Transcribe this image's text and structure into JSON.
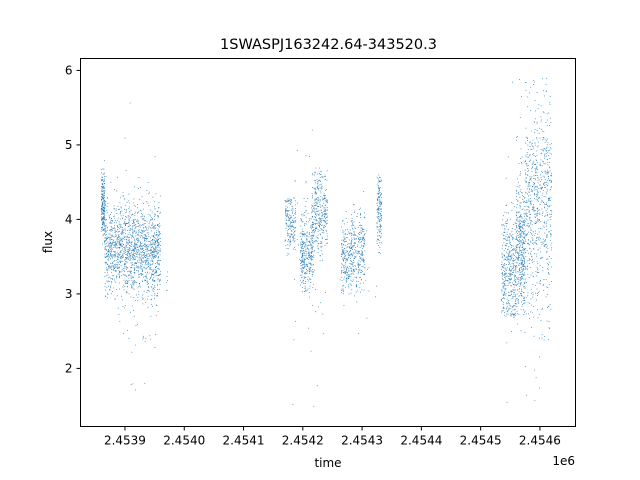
{
  "chart_data": {
    "type": "scatter",
    "title": "1SWASPJ163242.64-343520.3",
    "xlabel": "time",
    "ylabel": "flux",
    "x_offset_label": "1e6",
    "xlim": [
      2453825,
      2454660
    ],
    "ylim": [
      1.22,
      6.16
    ],
    "x_ticks": [
      2453900,
      2454000,
      2454100,
      2454200,
      2454300,
      2454400,
      2454500,
      2454600
    ],
    "x_tick_labels": [
      "2.4539",
      "2.4540",
      "2.4541",
      "2.4542",
      "2.4543",
      "2.4544",
      "2.4545",
      "2.4546"
    ],
    "y_ticks": [
      2,
      3,
      4,
      5,
      6
    ],
    "y_tick_labels": [
      "2",
      "3",
      "4",
      "5",
      "6"
    ],
    "grid": false,
    "marker_color": "#1f77b4",
    "clusters": [
      {
        "x_start": 2453860,
        "x_end": 2453866,
        "mean": 4.2,
        "spread": 0.22,
        "min": 3.4,
        "max": 4.8,
        "count": 220
      },
      {
        "x_start": 2453866,
        "x_end": 2453960,
        "mean": 3.6,
        "spread": 0.3,
        "min": 2.3,
        "max": 4.6,
        "count": 1500
      },
      {
        "x_start": 2453900,
        "x_end": 2453955,
        "mean": 3.5,
        "spread": 0.8,
        "min": 1.55,
        "max": 5.95,
        "count": 70
      },
      {
        "x_start": 2453970,
        "x_end": 2453972,
        "mean": 3.2,
        "spread": 0.1,
        "min": 3.0,
        "max": 3.3,
        "count": 6
      },
      {
        "x_start": 2454170,
        "x_end": 2454188,
        "mean": 3.95,
        "spread": 0.2,
        "min": 3.5,
        "max": 4.3,
        "count": 180
      },
      {
        "x_start": 2454196,
        "x_end": 2454218,
        "mean": 3.55,
        "spread": 0.25,
        "min": 3.0,
        "max": 4.2,
        "count": 320
      },
      {
        "x_start": 2454215,
        "x_end": 2454242,
        "mean": 4.1,
        "spread": 0.28,
        "min": 3.3,
        "max": 4.7,
        "count": 320
      },
      {
        "x_start": 2454180,
        "x_end": 2454240,
        "mean": 3.7,
        "spread": 0.9,
        "min": 1.45,
        "max": 5.55,
        "count": 60
      },
      {
        "x_start": 2454265,
        "x_end": 2454282,
        "mean": 3.45,
        "spread": 0.22,
        "min": 3.0,
        "max": 4.0,
        "count": 200
      },
      {
        "x_start": 2454282,
        "x_end": 2454305,
        "mean": 3.6,
        "spread": 0.25,
        "min": 3.0,
        "max": 4.2,
        "count": 260
      },
      {
        "x_start": 2454325,
        "x_end": 2454333,
        "mean": 4.1,
        "spread": 0.28,
        "min": 3.3,
        "max": 4.6,
        "count": 150
      },
      {
        "x_start": 2454260,
        "x_end": 2454330,
        "mean": 3.5,
        "spread": 0.6,
        "min": 1.7,
        "max": 4.8,
        "count": 30
      },
      {
        "x_start": 2454535,
        "x_end": 2454560,
        "mean": 3.35,
        "spread": 0.35,
        "min": 2.7,
        "max": 4.2,
        "count": 400
      },
      {
        "x_start": 2454560,
        "x_end": 2454575,
        "mean": 3.6,
        "spread": 0.4,
        "min": 2.4,
        "max": 4.8,
        "count": 400
      },
      {
        "x_start": 2454575,
        "x_end": 2454620,
        "mean": 4.2,
        "spread": 0.65,
        "min": 2.4,
        "max": 5.9,
        "count": 700
      },
      {
        "x_start": 2454540,
        "x_end": 2454620,
        "mean": 3.9,
        "spread": 1.1,
        "min": 1.5,
        "max": 5.9,
        "count": 80
      }
    ]
  }
}
